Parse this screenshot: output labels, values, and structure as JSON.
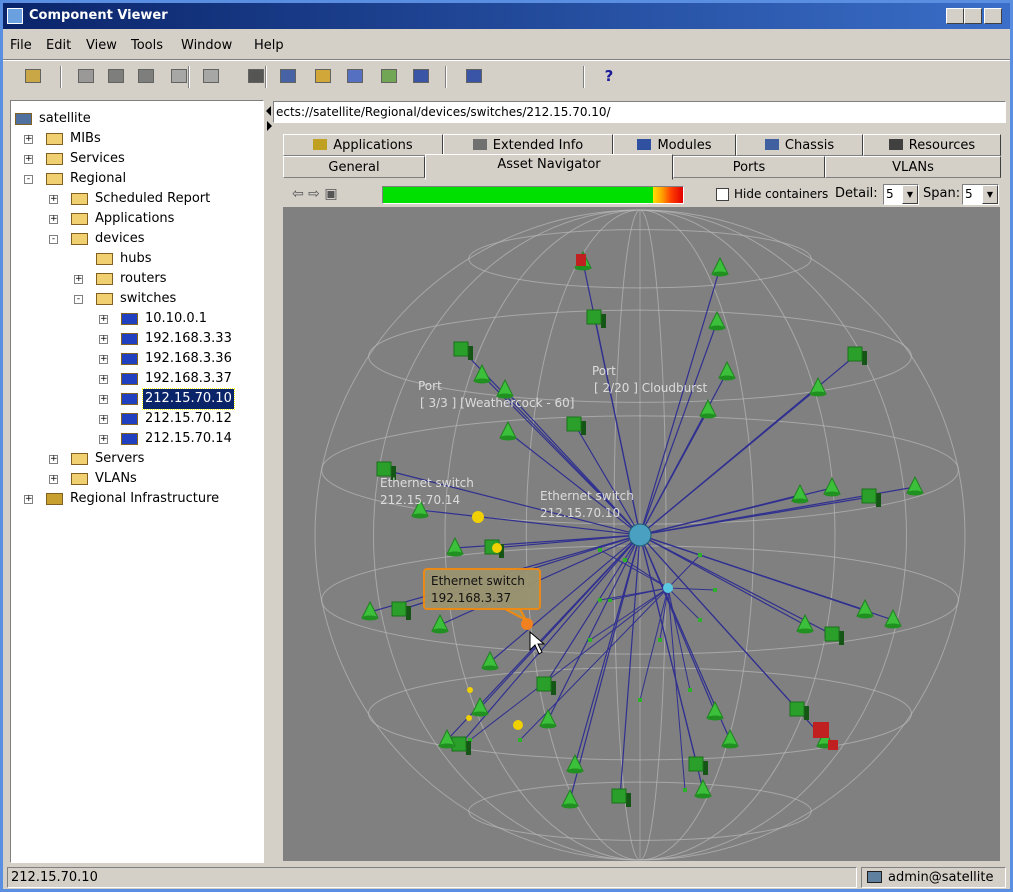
{
  "window": {
    "title": "Component Viewer"
  },
  "menu": [
    "File",
    "Edit",
    "View",
    "Tools",
    "Window",
    "Help"
  ],
  "toolbar": {
    "help": "?"
  },
  "tree": {
    "nodes": [
      "satellite",
      "MIBs",
      "Services",
      "Regional",
      "Scheduled Report",
      "Applications",
      "devices",
      "hubs",
      "routers",
      "switches",
      "10.10.0.1",
      "192.168.3.33",
      "192.168.3.36",
      "192.168.3.37",
      "212.15.70.10",
      "212.15.70.12",
      "212.15.70.14",
      "Servers",
      "VLANs",
      "Regional Infrastructure"
    ]
  },
  "address": "ects://satellite/Regional/devices/switches/212.15.70.10/",
  "tabs": {
    "row1": [
      "Applications",
      "Extended Info",
      "Modules",
      "Chassis",
      "Resources"
    ],
    "row2": [
      "General",
      "Asset Navigator",
      "Ports",
      "VLANs"
    ]
  },
  "controls": {
    "hide_containers": "Hide containers",
    "detail_label": "Detail:",
    "detail": "5",
    "span_label": "Span:",
    "span": "5"
  },
  "graph": {
    "labels": [
      {
        "title": "Port",
        "subtitle": "[ 3/3 ] [Weathercock - 60]"
      },
      {
        "title": "Port",
        "subtitle": "[ 2/20 ] Cloudburst"
      },
      {
        "title": "Ethernet switch",
        "subtitle": "212.15.70.14"
      },
      {
        "title": "Ethernet switch",
        "subtitle": "212.15.70.10"
      }
    ],
    "tooltip": {
      "title": "Ethernet switch",
      "subtitle": "192.168.3.37"
    }
  },
  "status": {
    "left": "212.15.70.10",
    "right": "admin@satellite"
  }
}
